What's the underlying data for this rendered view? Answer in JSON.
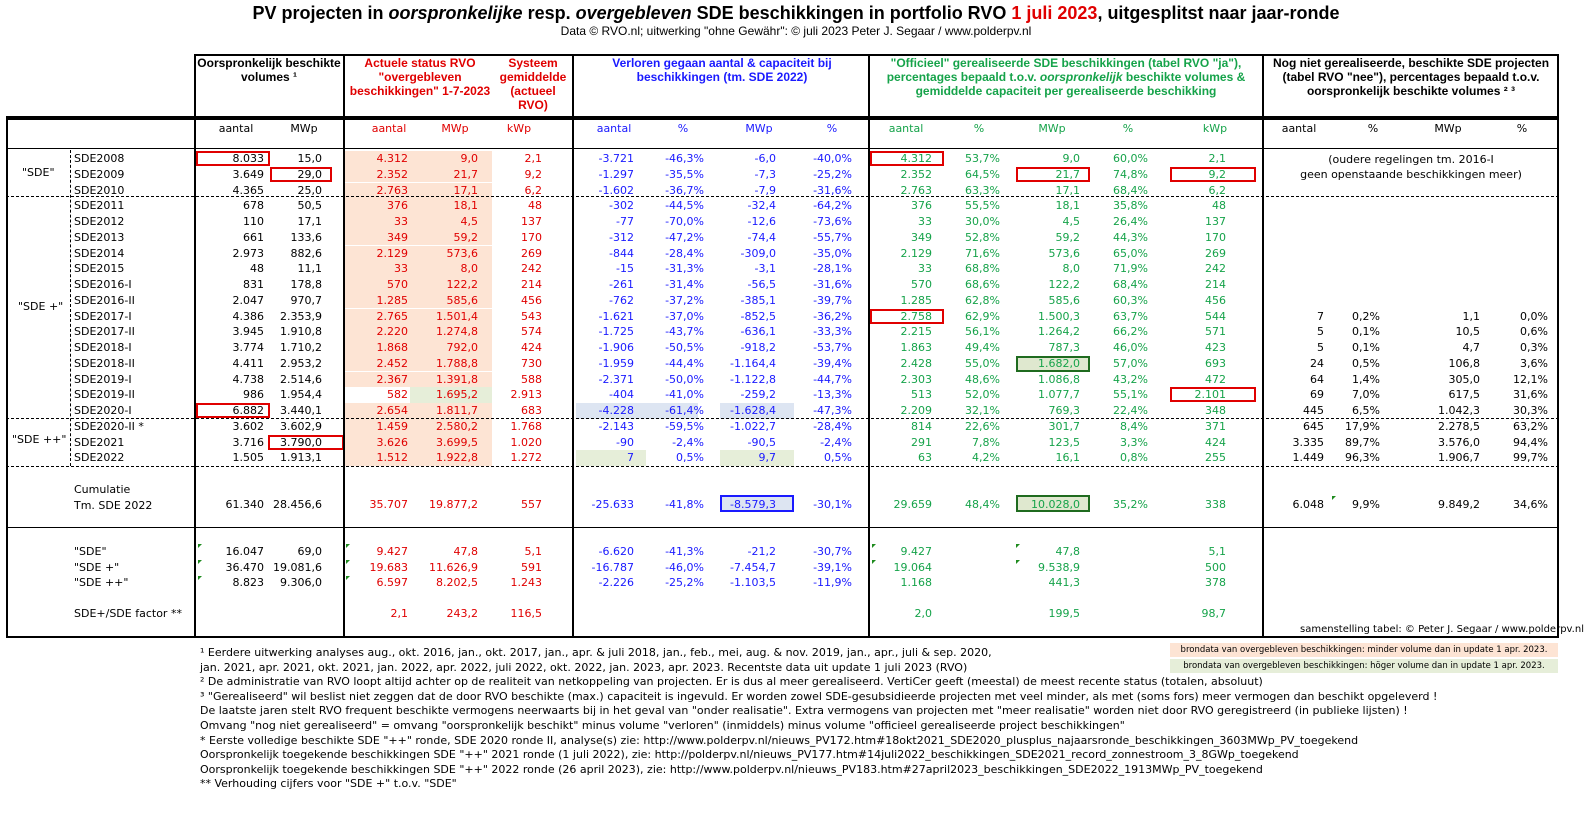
{
  "title": {
    "part1": "PV projecten in ",
    "part2": "oorspronkelijke",
    "part3": " resp. ",
    "part4": "overgebleven",
    "part5": " SDE beschikkingen in portfolio RVO ",
    "date": "1 juli 2023",
    "part6": ", uitgesplitst naar jaar-ronde"
  },
  "subtitle": "Data © RVO.nl; uitwerking \"ohne Gewähr\": © juli 2023 Peter J. Segaar / www.polderpv.nl",
  "headers": {
    "orig": "Oorspronkelijk beschikte volumes ¹",
    "actual": "Actuele status RVO \"overgebleven beschikkingen\" 1-7-2023",
    "system": "Systeem gemiddelde (actueel RVO)",
    "lost": "Verloren gegaan aantal & capaciteit bij beschikkingen (tm. SDE 2022)",
    "realized_a": "\"Officieel\" gerealiseerde SDE beschikkingen (tabel RVO \"ja\"), percentages bepaald t.o.v. ",
    "realized_b": "oorspronkelijk",
    "realized_c": " beschikte volumes & gemiddelde capaciteit per gerealiseerde beschikking",
    "notreal": "Nog niet gerealiseerde, beschikte SDE projecten (tabel RVO \"nee\"), percentages bepaald t.o.v. oorspronkelijk beschikte volumes ² ³"
  },
  "subheaders": [
    "aantal",
    "MWp",
    "aantal",
    "MWp",
    "kWp",
    "aantal",
    "%",
    "MWp",
    "%",
    "aantal",
    "%",
    "MWp",
    "%",
    "kWp",
    "aantal",
    "%",
    "MWp",
    "%"
  ],
  "groups": {
    "sde": "\"SDE\"",
    "sdeplus": "\"SDE +\"",
    "sdeplusplus": "\"SDE ++\""
  },
  "old_note": [
    "(oudere regelingen tm. 2016-I",
    "geen openstaande beschikkingen meer)"
  ],
  "rows": [
    {
      "name": "SDE2008",
      "v": [
        "8.033",
        "15,0",
        "4.312",
        "9,0",
        "2,1",
        "-3.721",
        "-46,3%",
        "-6,0",
        "-40,0%",
        "4.312",
        "53,7%",
        "9,0",
        "60,0%",
        "2,1",
        "",
        "",
        "",
        ""
      ]
    },
    {
      "name": "SDE2009",
      "v": [
        "3.649",
        "29,0",
        "2.352",
        "21,7",
        "9,2",
        "-1.297",
        "-35,5%",
        "-7,3",
        "-25,2%",
        "2.352",
        "64,5%",
        "21,7",
        "74,8%",
        "9,2",
        "",
        "",
        "",
        ""
      ]
    },
    {
      "name": "SDE2010",
      "v": [
        "4.365",
        "25,0",
        "2.763",
        "17,1",
        "6,2",
        "-1.602",
        "-36,7%",
        "-7,9",
        "-31,6%",
        "2.763",
        "63,3%",
        "17,1",
        "68,4%",
        "6,2",
        "",
        "",
        "",
        ""
      ]
    },
    {
      "name": "SDE2011",
      "v": [
        "678",
        "50,5",
        "376",
        "18,1",
        "48",
        "-302",
        "-44,5%",
        "-32,4",
        "-64,2%",
        "376",
        "55,5%",
        "18,1",
        "35,8%",
        "48",
        "",
        "",
        "",
        ""
      ]
    },
    {
      "name": "SDE2012",
      "v": [
        "110",
        "17,1",
        "33",
        "4,5",
        "137",
        "-77",
        "-70,0%",
        "-12,6",
        "-73,6%",
        "33",
        "30,0%",
        "4,5",
        "26,4%",
        "137",
        "",
        "",
        "",
        ""
      ]
    },
    {
      "name": "SDE2013",
      "v": [
        "661",
        "133,6",
        "349",
        "59,2",
        "170",
        "-312",
        "-47,2%",
        "-74,4",
        "-55,7%",
        "349",
        "52,8%",
        "59,2",
        "44,3%",
        "170",
        "",
        "",
        "",
        ""
      ]
    },
    {
      "name": "SDE2014",
      "v": [
        "2.973",
        "882,6",
        "2.129",
        "573,6",
        "269",
        "-844",
        "-28,4%",
        "-309,0",
        "-35,0%",
        "2.129",
        "71,6%",
        "573,6",
        "65,0%",
        "269",
        "",
        "",
        "",
        ""
      ]
    },
    {
      "name": "SDE2015",
      "v": [
        "48",
        "11,1",
        "33",
        "8,0",
        "242",
        "-15",
        "-31,3%",
        "-3,1",
        "-28,1%",
        "33",
        "68,8%",
        "8,0",
        "71,9%",
        "242",
        "",
        "",
        "",
        ""
      ]
    },
    {
      "name": "SDE2016-I",
      "v": [
        "831",
        "178,8",
        "570",
        "122,2",
        "214",
        "-261",
        "-31,4%",
        "-56,5",
        "-31,6%",
        "570",
        "68,6%",
        "122,2",
        "68,4%",
        "214",
        "",
        "",
        "",
        ""
      ]
    },
    {
      "name": "SDE2016-II",
      "v": [
        "2.047",
        "970,7",
        "1.285",
        "585,6",
        "456",
        "-762",
        "-37,2%",
        "-385,1",
        "-39,7%",
        "1.285",
        "62,8%",
        "585,6",
        "60,3%",
        "456",
        "",
        "",
        "",
        ""
      ]
    },
    {
      "name": "SDE2017-I",
      "v": [
        "4.386",
        "2.353,9",
        "2.765",
        "1.501,4",
        "543",
        "-1.621",
        "-37,0%",
        "-852,5",
        "-36,2%",
        "2.758",
        "62,9%",
        "1.500,3",
        "63,7%",
        "544",
        "7",
        "0,2%",
        "1,1",
        "0,0%"
      ]
    },
    {
      "name": "SDE2017-II",
      "v": [
        "3.945",
        "1.910,8",
        "2.220",
        "1.274,8",
        "574",
        "-1.725",
        "-43,7%",
        "-636,1",
        "-33,3%",
        "2.215",
        "56,1%",
        "1.264,2",
        "66,2%",
        "571",
        "5",
        "0,1%",
        "10,5",
        "0,6%"
      ]
    },
    {
      "name": "SDE2018-I",
      "v": [
        "3.774",
        "1.710,2",
        "1.868",
        "792,0",
        "424",
        "-1.906",
        "-50,5%",
        "-918,2",
        "-53,7%",
        "1.863",
        "49,4%",
        "787,3",
        "46,0%",
        "423",
        "5",
        "0,1%",
        "4,7",
        "0,3%"
      ]
    },
    {
      "name": "SDE2018-II",
      "v": [
        "4.411",
        "2.953,2",
        "2.452",
        "1.788,8",
        "730",
        "-1.959",
        "-44,4%",
        "-1.164,4",
        "-39,4%",
        "2.428",
        "55,0%",
        "1.682,0",
        "57,0%",
        "693",
        "24",
        "0,5%",
        "106,8",
        "3,6%"
      ]
    },
    {
      "name": "SDE2019-I",
      "v": [
        "4.738",
        "2.514,6",
        "2.367",
        "1.391,8",
        "588",
        "-2.371",
        "-50,0%",
        "-1.122,8",
        "-44,7%",
        "2.303",
        "48,6%",
        "1.086,8",
        "43,2%",
        "472",
        "64",
        "1,4%",
        "305,0",
        "12,1%"
      ]
    },
    {
      "name": "SDE2019-II",
      "v": [
        "986",
        "1.954,4",
        "582",
        "1.695,2",
        "2.913",
        "-404",
        "-41,0%",
        "-259,2",
        "-13,3%",
        "513",
        "52,0%",
        "1.077,7",
        "55,1%",
        "2.101",
        "69",
        "7,0%",
        "617,5",
        "31,6%"
      ]
    },
    {
      "name": "SDE2020-I",
      "v": [
        "6.882",
        "3.440,1",
        "2.654",
        "1.811,7",
        "683",
        "-4.228",
        "-61,4%",
        "-1.628,4",
        "-47,3%",
        "2.209",
        "32,1%",
        "769,3",
        "22,4%",
        "348",
        "445",
        "6,5%",
        "1.042,3",
        "30,3%"
      ]
    },
    {
      "name": "SDE2020-II *",
      "v": [
        "3.602",
        "3.602,9",
        "1.459",
        "2.580,2",
        "1.768",
        "-2.143",
        "-59,5%",
        "-1.022,7",
        "-28,4%",
        "814",
        "22,6%",
        "301,7",
        "8,4%",
        "371",
        "645",
        "17,9%",
        "2.278,5",
        "63,2%"
      ]
    },
    {
      "name": "SDE2021",
      "v": [
        "3.716",
        "3.790,0",
        "3.626",
        "3.699,5",
        "1.020",
        "-90",
        "-2,4%",
        "-90,5",
        "-2,4%",
        "291",
        "7,8%",
        "123,5",
        "3,3%",
        "424",
        "3.335",
        "89,7%",
        "3.576,0",
        "94,4%"
      ]
    },
    {
      "name": "SDE2022",
      "v": [
        "1.505",
        "1.913,1",
        "1.512",
        "1.922,8",
        "1.272",
        "7",
        "0,5%",
        "9,7",
        "0,5%",
        "63",
        "4,2%",
        "16,1",
        "0,8%",
        "255",
        "1.449",
        "96,3%",
        "1.906,7",
        "99,7%"
      ]
    }
  ],
  "cumulatie": {
    "label1": "Cumulatie",
    "label2": "Tm. SDE 2022",
    "v": [
      "61.340",
      "28.456,6",
      "35.707",
      "19.877,2",
      "557",
      "-25.633",
      "-41,8%",
      "-8.579,3",
      "-30,1%",
      "29.659",
      "48,4%",
      "10.028,0",
      "35,2%",
      "338",
      "6.048",
      "9,9%",
      "9.849,2",
      "34,6%"
    ]
  },
  "summary": [
    {
      "name": "\"SDE\"",
      "v": [
        "16.047",
        "69,0",
        "9.427",
        "47,8",
        "5,1",
        "-6.620",
        "-41,3%",
        "-21,2",
        "-30,7%",
        "9.427",
        "",
        "47,8",
        "",
        "5,1",
        "",
        "",
        "",
        ""
      ]
    },
    {
      "name": "\"SDE +\"",
      "v": [
        "36.470",
        "19.081,6",
        "19.683",
        "11.626,9",
        "591",
        "-16.787",
        "-46,0%",
        "-7.454,7",
        "-39,1%",
        "19.064",
        "",
        "9.538,9",
        "",
        "500",
        "",
        "",
        "",
        ""
      ]
    },
    {
      "name": "\"SDE ++\"",
      "v": [
        "8.823",
        "9.306,0",
        "6.597",
        "8.202,5",
        "1.243",
        "-2.226",
        "-25,2%",
        "-1.103,5",
        "-11,9%",
        "1.168",
        "",
        "441,3",
        "",
        "378",
        "",
        "",
        "",
        ""
      ]
    }
  ],
  "factor": {
    "name": "SDE+/SDE factor **",
    "v": [
      "",
      "",
      "2,1",
      "243,2",
      "116,5",
      "",
      "",
      "",
      "",
      "2,0",
      "",
      "199,5",
      "",
      "98,7",
      "",
      "",
      "",
      ""
    ]
  },
  "credit": "samenstelling tabel: © Peter J. Segaar / www.polderpv.nl",
  "legend": {
    "peach": "brondata van overgebleven beschikkingen: minder volume dan in update 1 apr. 2023.",
    "green": "brondata van overgebleven beschikkingen: höger volume dan in update 1 apr. 2023."
  },
  "notes": [
    "¹ Eerdere uitwerking analyses aug., okt. 2016, jan., okt.  2017, jan., apr. & juli 2018, jan., feb., mei, aug. & nov. 2019, jan., apr., juli & sep. 2020,",
    "   jan. 2021, apr. 2021, okt. 2021, jan. 2022, apr. 2022, juli 2022, okt. 2022, jan. 2023, apr. 2023. Recentste data uit update 1 juli 2023 (RVO)",
    "² De administratie van RVO loopt altijd achter op de realiteit van netkoppeling van projecten. Er is dus al meer gerealiseerd. VertiCer geeft (meestal) de meest recente status (totalen, absoluut)",
    "³ \"Gerealiseerd\" wil beslist niet zeggen dat de door RVO beschikte (max.) capaciteit is ingevuld. Er worden zowel SDE-gesubsidieerde projecten met veel minder,  als met (soms fors) meer  vermogen dan beschikt opgeleverd !",
    "De laatste jaren stelt RVO frequent beschikte vermogens neerwaarts bij in het geval van \"onder realisatie\". Extra vermogens van projecten met \"meer realisatie\" worden niet door RVO geregistreerd (in publieke lijsten) !",
    "Omvang \"nog niet gerealiseerd\" = omvang \"oorspronkelijk beschikt\" minus volume \"verloren\" (inmiddels) minus volume \"officieel gerealiseerde project beschikkingen\"",
    "* Eerste volledige beschikte SDE \"++\" ronde, SDE 2020 ronde II, analyse(s) zie: http://www.polderpv.nl/nieuws_PV172.htm#18okt2021_SDE2020_plusplus_najaarsronde_beschikkingen_3603MWp_PV_toegekend",
    "Oorspronkelijk toegekende beschikkingen SDE \"++\" 2021 ronde (1 juli 2022), zie: http://polderpv.nl/nieuws_PV177.htm#14juli2022_beschikkingen_SDE2021_record_zonnestroom_3_8GWp_toegekend",
    "Oorspronkelijk toegekende beschikkingen SDE \"++\" 2022 ronde (26 april 2023), zie: http://www.polderpv.nl/nieuws_PV183.htm#27april2023_beschikkingen_SDE2022_1913MWp_PV_toegekend",
    "** Verhouding cijfers voor \"SDE +\" t.o.v. \"SDE\""
  ]
}
